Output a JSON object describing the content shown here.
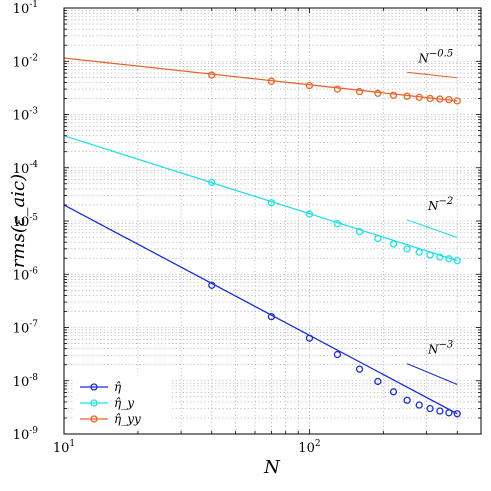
{
  "chart_data": {
    "type": "line",
    "title": "",
    "xlabel": "N",
    "ylabel": "rms(ε_aic)",
    "x_scale": "log",
    "y_scale": "log",
    "xlim": [
      10,
      500
    ],
    "ylim": [
      1e-09,
      0.1
    ],
    "grid": true,
    "legend": "bottom-left",
    "x_ticks": [
      {
        "value": 10,
        "base": "10",
        "exp": "1"
      },
      {
        "value": 100,
        "base": "10",
        "exp": "2"
      }
    ],
    "y_ticks": [
      {
        "value": 0.1,
        "base": "10",
        "exp": "-1"
      },
      {
        "value": 0.01,
        "base": "10",
        "exp": "-2"
      },
      {
        "value": 0.001,
        "base": "10",
        "exp": "-3"
      },
      {
        "value": 0.0001,
        "base": "10",
        "exp": "-4"
      },
      {
        "value": 1e-05,
        "base": "10",
        "exp": "-5"
      },
      {
        "value": 1e-06,
        "base": "10",
        "exp": "-6"
      },
      {
        "value": 1e-07,
        "base": "10",
        "exp": "-7"
      },
      {
        "value": 1e-08,
        "base": "10",
        "exp": "-8"
      },
      {
        "value": 1e-09,
        "base": "10",
        "exp": "-9"
      }
    ],
    "series": [
      {
        "name": "η̂",
        "color": "#1c2fd1",
        "marker": "circle",
        "line": {
          "x": [
            10,
            400
          ],
          "y": [
            2e-05,
            2.4e-09
          ]
        },
        "points": {
          "x": [
            40,
            70,
            100,
            130,
            160,
            190,
            220,
            250,
            280,
            310,
            340,
            370,
            400
          ],
          "y": [
            6.2e-07,
            1.6e-07,
            6.3e-08,
            3.1e-08,
            1.65e-08,
            9.7e-09,
            6.2e-09,
            4.3e-09,
            3.5e-09,
            3e-09,
            2.7e-09,
            2.5e-09,
            2.4e-09
          ]
        }
      },
      {
        "name": "η̂_y",
        "color": "#22e0e8",
        "marker": "circle",
        "line": {
          "x": [
            10,
            400
          ],
          "y": [
            0.0004,
            1.8e-06
          ]
        },
        "points": {
          "x": [
            40,
            70,
            100,
            130,
            160,
            190,
            220,
            250,
            280,
            310,
            340,
            370,
            400
          ],
          "y": [
            5.3e-05,
            2.2e-05,
            1.35e-05,
            8.9e-06,
            6.3e-06,
            4.7e-06,
            3.7e-06,
            3e-06,
            2.6e-06,
            2.3e-06,
            2.1e-06,
            1.95e-06,
            1.8e-06
          ]
        }
      },
      {
        "name": "η̂_yy",
        "color": "#e8652a",
        "marker": "circle",
        "line": {
          "x": [
            10,
            400
          ],
          "y": [
            0.0115,
            0.0018
          ]
        },
        "points": {
          "x": [
            40,
            70,
            100,
            130,
            160,
            190,
            220,
            250,
            280,
            310,
            340,
            370,
            400
          ],
          "y": [
            0.0055,
            0.0042,
            0.0035,
            0.003,
            0.0027,
            0.0025,
            0.0023,
            0.0022,
            0.0021,
            0.002,
            0.00195,
            0.0019,
            0.0018
          ]
        }
      }
    ],
    "reference_lines": [
      {
        "label_base": "N",
        "label_exp": "−0.5",
        "color": "#e8652a",
        "x": [
          250,
          400
        ],
        "y": [
          0.0062,
          0.0049
        ]
      },
      {
        "label_base": "N",
        "label_exp": "−2",
        "color": "#22e0e8",
        "x": [
          250,
          400
        ],
        "y": [
          1.05e-05,
          4.9e-06
        ]
      },
      {
        "label_base": "N",
        "label_exp": "−3",
        "color": "#1c2fd1",
        "x": [
          250,
          400
        ],
        "y": [
          2.1e-08,
          8.5e-09
        ]
      }
    ]
  }
}
